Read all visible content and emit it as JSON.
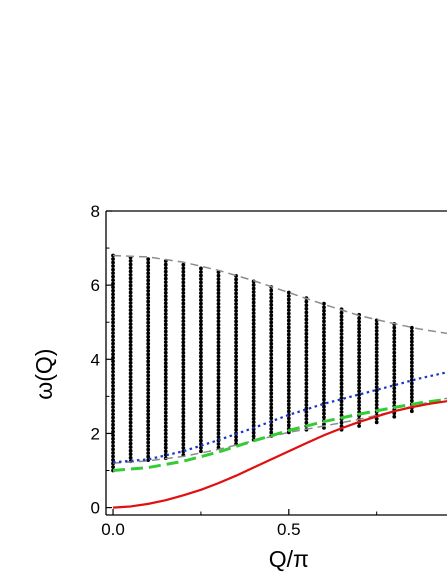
{
  "chart_data": {
    "type": "scatter",
    "title": "",
    "xlabel": "Q/π",
    "ylabel": "ω(Q)",
    "xlim": [
      -0.02,
      0.95
    ],
    "ylim": [
      -0.2,
      8.0
    ],
    "x_ticks": [
      {
        "value": 0.0,
        "label": "0.0"
      },
      {
        "value": 0.5,
        "label": "0.5"
      }
    ],
    "y_ticks": [
      {
        "value": 0,
        "label": "0"
      },
      {
        "value": 2,
        "label": "2"
      },
      {
        "value": 4,
        "label": "4"
      },
      {
        "value": 6,
        "label": "6"
      },
      {
        "value": 8,
        "label": "8"
      }
    ],
    "grid": false,
    "scatter_columns": [
      {
        "x": 0.0,
        "ymin": 1.0,
        "ymax": 6.8
      },
      {
        "x": 0.05,
        "ymin": 1.25,
        "ymax": 6.75
      },
      {
        "x": 0.1,
        "ymin": 1.28,
        "ymax": 6.7
      },
      {
        "x": 0.15,
        "ymin": 1.33,
        "ymax": 6.65
      },
      {
        "x": 0.2,
        "ymin": 1.42,
        "ymax": 6.55
      },
      {
        "x": 0.25,
        "ymin": 1.52,
        "ymax": 6.45
      },
      {
        "x": 0.3,
        "ymin": 1.62,
        "ymax": 6.35
      },
      {
        "x": 0.35,
        "ymin": 1.72,
        "ymax": 6.25
      },
      {
        "x": 0.4,
        "ymin": 1.83,
        "ymax": 6.1
      },
      {
        "x": 0.45,
        "ymin": 1.93,
        "ymax": 5.95
      },
      {
        "x": 0.5,
        "ymin": 2.03,
        "ymax": 5.8
      },
      {
        "x": 0.55,
        "ymin": 2.1,
        "ymax": 5.65
      },
      {
        "x": 0.6,
        "ymin": 2.15,
        "ymax": 5.5
      },
      {
        "x": 0.65,
        "ymin": 2.1,
        "ymax": 5.35
      },
      {
        "x": 0.7,
        "ymin": 2.2,
        "ymax": 5.2
      },
      {
        "x": 0.75,
        "ymin": 2.3,
        "ymax": 5.05
      },
      {
        "x": 0.8,
        "ymin": 2.45,
        "ymax": 4.95
      },
      {
        "x": 0.85,
        "ymin": 2.6,
        "ymax": 4.85
      }
    ],
    "scatter_color": "#000000",
    "lines": [
      {
        "style": "dashed",
        "color": "#8c8c8c",
        "x": [
          0.0,
          0.1,
          0.2,
          0.3,
          0.4,
          0.5,
          0.6,
          0.7,
          0.8,
          0.87,
          0.95
        ],
        "y": [
          6.8,
          6.76,
          6.62,
          6.4,
          6.12,
          5.8,
          5.48,
          5.18,
          4.96,
          4.82,
          4.7
        ]
      },
      {
        "style": "dashed",
        "color": "#8c8c8c",
        "x": [
          0.0,
          0.1,
          0.2,
          0.3,
          0.4,
          0.5,
          0.6,
          0.7,
          0.8,
          0.87,
          0.95
        ],
        "y": [
          1.2,
          1.26,
          1.38,
          1.57,
          1.8,
          2.03,
          2.2,
          2.38,
          2.6,
          2.78,
          2.95
        ]
      },
      {
        "style": "dotted",
        "color": "#1a33cc",
        "x": [
          0.0,
          0.1,
          0.2,
          0.3,
          0.4,
          0.5,
          0.6,
          0.7,
          0.8,
          0.87,
          0.95
        ],
        "y": [
          1.22,
          1.3,
          1.52,
          1.82,
          2.15,
          2.5,
          2.8,
          3.05,
          3.3,
          3.48,
          3.65
        ]
      },
      {
        "style": "long-dashed",
        "color": "#33cc33",
        "x": [
          0.0,
          0.1,
          0.2,
          0.3,
          0.4,
          0.5,
          0.6,
          0.7,
          0.8,
          0.87,
          0.95
        ],
        "y": [
          1.0,
          1.08,
          1.25,
          1.5,
          1.8,
          2.08,
          2.32,
          2.52,
          2.7,
          2.82,
          2.92
        ]
      },
      {
        "style": "solid",
        "color": "#e01010",
        "x": [
          0.0,
          0.05,
          0.1,
          0.15,
          0.2,
          0.25,
          0.3,
          0.35,
          0.4,
          0.45,
          0.5,
          0.55,
          0.6,
          0.65,
          0.7,
          0.75,
          0.8,
          0.85,
          0.9,
          0.95
        ],
        "y": [
          0.0,
          0.03,
          0.1,
          0.2,
          0.33,
          0.48,
          0.66,
          0.86,
          1.08,
          1.3,
          1.52,
          1.74,
          1.95,
          2.14,
          2.31,
          2.46,
          2.6,
          2.71,
          2.8,
          2.87
        ]
      }
    ]
  }
}
